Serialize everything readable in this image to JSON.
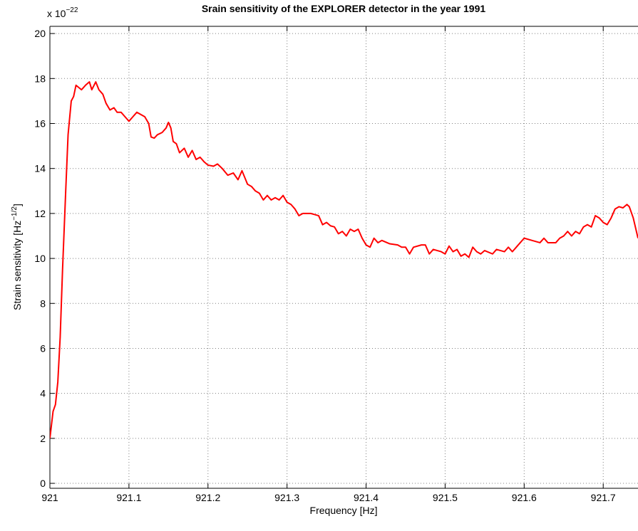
{
  "chart_data": {
    "type": "line",
    "title": "Srain sensitivity of the EXPLORER detector in the year 1991",
    "x_label": "Frequency [Hz]",
    "y_label_parts": [
      "Strain sensitivity [Hz",
      "−1/2",
      "]"
    ],
    "y_multiplier_parts": [
      "x 10",
      "−22"
    ],
    "xlim": [
      921,
      921.744
    ],
    "ylim": [
      -0.22,
      20.32
    ],
    "xticks": [
      921,
      921.1,
      921.2,
      921.3,
      921.4,
      921.5,
      921.6,
      921.7
    ],
    "yticks": [
      0,
      2,
      4,
      6,
      8,
      10,
      12,
      14,
      16,
      18,
      20
    ],
    "grid": true,
    "series": [
      {
        "color": "#ff0000",
        "x": [
          921.0,
          921.004,
          921.007,
          921.01,
          921.013,
          921.016,
          921.02,
          921.023,
          921.027,
          921.03,
          921.033,
          921.04,
          921.045,
          921.05,
          921.053,
          921.058,
          921.062,
          921.067,
          921.071,
          921.076,
          921.081,
          921.085,
          921.09,
          921.095,
          921.1,
          921.105,
          921.11,
          921.115,
          921.12,
          921.125,
          921.128,
          921.132,
          921.136,
          921.142,
          921.147,
          921.15,
          921.153,
          921.156,
          921.16,
          921.164,
          921.17,
          921.175,
          921.18,
          921.185,
          921.19,
          921.195,
          921.2,
          921.207,
          921.212,
          921.218,
          921.225,
          921.232,
          921.238,
          921.243,
          921.25,
          921.255,
          921.26,
          921.265,
          921.27,
          921.275,
          921.28,
          921.285,
          921.29,
          921.295,
          921.3,
          921.305,
          921.31,
          921.315,
          921.32,
          921.33,
          921.335,
          921.34,
          921.345,
          921.35,
          921.355,
          921.36,
          921.365,
          921.37,
          921.375,
          921.38,
          921.385,
          921.39,
          921.395,
          921.4,
          921.405,
          921.41,
          921.415,
          921.42,
          921.43,
          921.44,
          921.445,
          921.45,
          921.455,
          921.46,
          921.47,
          921.475,
          921.48,
          921.485,
          921.495,
          921.5,
          921.505,
          921.51,
          921.515,
          921.52,
          921.525,
          921.53,
          921.535,
          921.54,
          921.545,
          921.55,
          921.56,
          921.565,
          921.575,
          921.58,
          921.585,
          921.59,
          921.595,
          921.6,
          921.61,
          921.62,
          921.625,
          921.63,
          921.64,
          921.645,
          921.65,
          921.655,
          921.66,
          921.665,
          921.67,
          921.675,
          921.68,
          921.685,
          921.69,
          921.695,
          921.7,
          921.705,
          921.71,
          921.715,
          921.72,
          921.725,
          921.73,
          921.733,
          921.738,
          921.744
        ],
        "values": [
          2.0,
          3.2,
          3.5,
          4.5,
          6.5,
          9.5,
          13.0,
          15.5,
          17.0,
          17.2,
          17.7,
          17.5,
          17.7,
          17.85,
          17.5,
          17.85,
          17.5,
          17.3,
          16.9,
          16.6,
          16.7,
          16.5,
          16.5,
          16.3,
          16.1,
          16.3,
          16.5,
          16.4,
          16.3,
          16.0,
          15.4,
          15.35,
          15.5,
          15.6,
          15.8,
          16.05,
          15.8,
          15.2,
          15.1,
          14.7,
          14.9,
          14.5,
          14.8,
          14.4,
          14.5,
          14.3,
          14.15,
          14.1,
          14.2,
          14.0,
          13.7,
          13.8,
          13.5,
          13.9,
          13.3,
          13.2,
          13.0,
          12.9,
          12.6,
          12.8,
          12.6,
          12.7,
          12.6,
          12.8,
          12.5,
          12.4,
          12.2,
          11.9,
          12.0,
          12.0,
          11.95,
          11.9,
          11.5,
          11.6,
          11.45,
          11.4,
          11.1,
          11.2,
          11.0,
          11.3,
          11.2,
          11.3,
          10.9,
          10.6,
          10.5,
          10.9,
          10.7,
          10.8,
          10.65,
          10.6,
          10.5,
          10.5,
          10.2,
          10.5,
          10.6,
          10.6,
          10.2,
          10.4,
          10.3,
          10.2,
          10.55,
          10.3,
          10.4,
          10.1,
          10.2,
          10.05,
          10.5,
          10.3,
          10.2,
          10.35,
          10.2,
          10.4,
          10.3,
          10.5,
          10.3,
          10.5,
          10.7,
          10.9,
          10.8,
          10.7,
          10.9,
          10.7,
          10.7,
          10.9,
          11.0,
          11.2,
          11.0,
          11.2,
          11.1,
          11.4,
          11.5,
          11.4,
          11.9,
          11.8,
          11.6,
          11.5,
          11.8,
          12.2,
          12.3,
          12.25,
          12.4,
          12.3,
          11.8,
          10.9
        ]
      }
    ]
  }
}
